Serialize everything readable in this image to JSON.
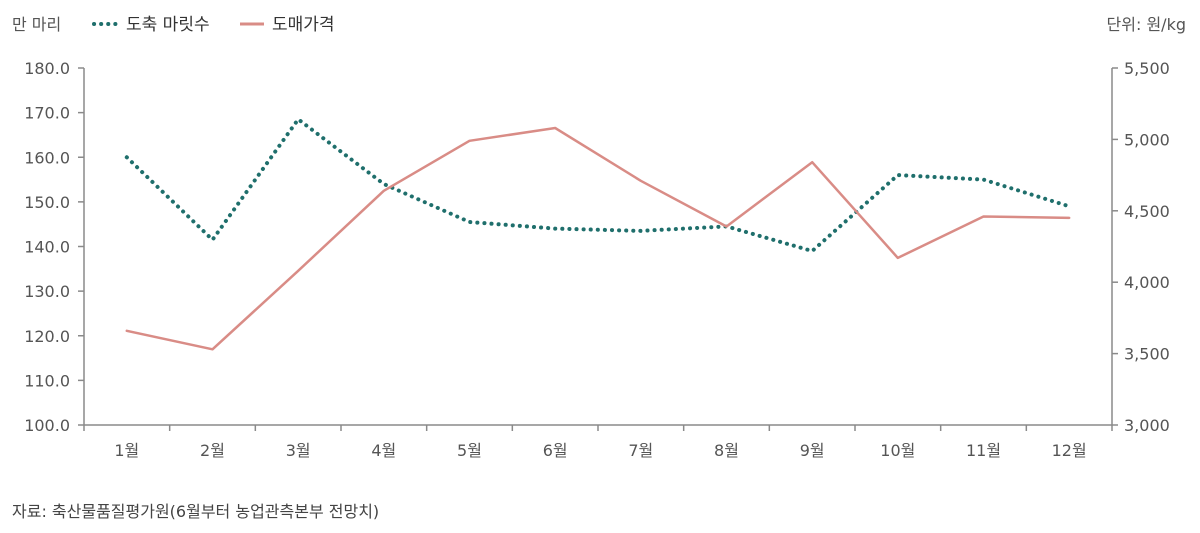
{
  "chart_data": {
    "type": "line",
    "left_unit": "만 마리",
    "right_unit": "단위: 원/kg",
    "source": "자료: 축산물품질평가원(6월부터 농업관측본부 전망치)",
    "categories": [
      "1월",
      "2월",
      "3월",
      "4월",
      "5월",
      "6월",
      "7월",
      "8월",
      "9월",
      "10월",
      "11월",
      "12월"
    ],
    "y_left": {
      "range": [
        100,
        180
      ],
      "ticks": [
        "100.0",
        "110.0",
        "120.0",
        "130.0",
        "140.0",
        "150.0",
        "160.0",
        "170.0",
        "180.0"
      ],
      "tick_values": [
        100,
        110,
        120,
        130,
        140,
        150,
        160,
        170,
        180
      ]
    },
    "y_right": {
      "range": [
        3000,
        5500
      ],
      "ticks": [
        "3,000",
        "3,500",
        "4,000",
        "4,500",
        "5,000",
        "5,500"
      ],
      "tick_values": [
        3000,
        3500,
        4000,
        4500,
        5000,
        5500
      ]
    },
    "series": [
      {
        "name": "도축 마릿수",
        "axis": "left",
        "style": "dotted",
        "color": "#1f6f6c",
        "values": [
          160.0,
          141.5,
          168.5,
          154.0,
          145.5,
          144.0,
          143.5,
          144.5,
          139.0,
          156.0,
          155.0,
          149.0
        ]
      },
      {
        "name": "도매가격",
        "axis": "right",
        "style": "solid",
        "color": "#d98c86",
        "values": [
          3660,
          3530,
          4080,
          4640,
          4990,
          5080,
          4710,
          4390,
          4840,
          4170,
          4460,
          4450
        ]
      }
    ]
  }
}
